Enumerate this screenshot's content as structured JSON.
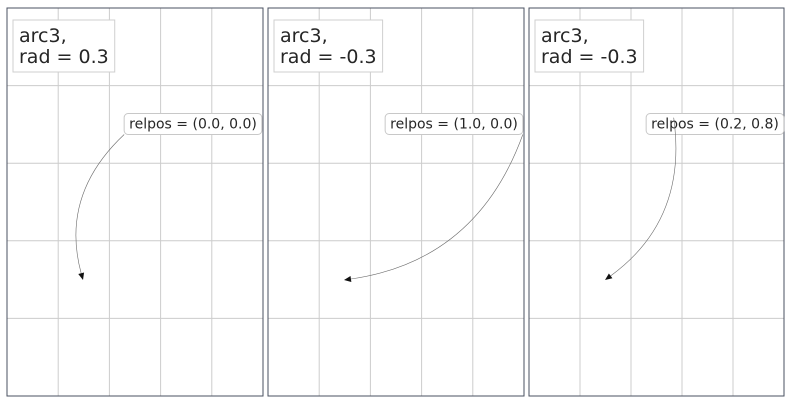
{
  "chart_data": [
    {
      "type": "annotation",
      "title": "arc3,\nrad = 0.3",
      "annotation_label": "relpos = (0.0, 0.0)",
      "connection_style": "arc3",
      "rad": 0.3,
      "relpos": [
        0.0,
        0.0
      ],
      "grid": true,
      "xticks": 5,
      "yticks": 5
    },
    {
      "type": "annotation",
      "title": "arc3,\nrad = -0.3",
      "annotation_label": "relpos = (1.0, 0.0)",
      "connection_style": "arc3",
      "rad": -0.3,
      "relpos": [
        1.0,
        0.0
      ],
      "grid": true,
      "xticks": 5,
      "yticks": 5
    },
    {
      "type": "annotation",
      "title": "arc3,\nrad = -0.3",
      "annotation_label": "relpos = (0.2, 0.8)",
      "connection_style": "arc3",
      "rad": -0.3,
      "relpos": [
        0.2,
        0.8
      ],
      "grid": true,
      "xticks": 5,
      "yticks": 5
    }
  ],
  "colors": {
    "frame": "#4a5060",
    "grid": "#cccccc",
    "text": "#262626",
    "connector": "#6b6b6b",
    "arrowhead": "#111111"
  }
}
